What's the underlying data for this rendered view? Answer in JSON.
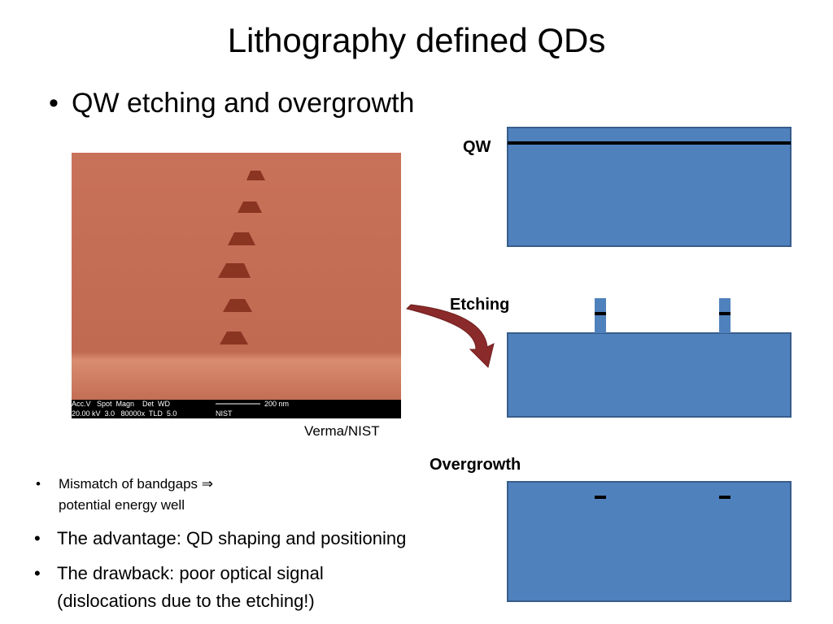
{
  "title": "Lithography defined QDs",
  "bullet": "QW etching and overgrowth",
  "image": {
    "info_header": "Acc.V   Spot  Magn    Det  WD",
    "info_values": "20.00 kV  3.0   80000x  TLD  5.0",
    "scale": "200 nm",
    "lab": "NIST",
    "caption": "Verma/NIST"
  },
  "diagrams": [
    {
      "label": "QW"
    },
    {
      "label": "Etching"
    },
    {
      "label": "Overgrowth"
    }
  ],
  "note": "Mismatch of bandgaps ⇒ potential energy well",
  "bullets_bottom": [
    "The advantage: QD shaping and positioning",
    "The drawback: poor optical signal (dislocations due to the etching!)"
  ]
}
